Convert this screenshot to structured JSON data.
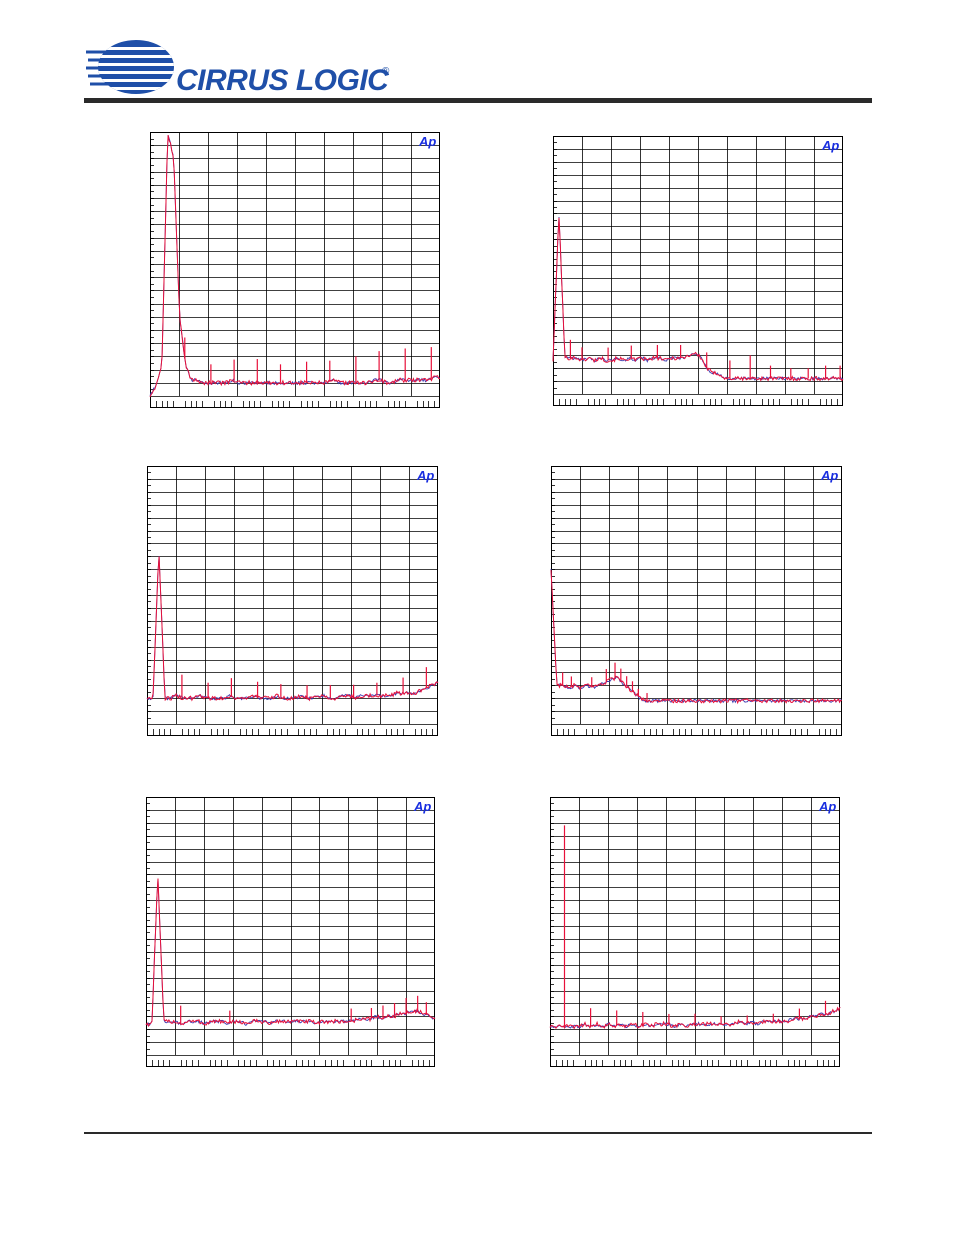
{
  "brand": {
    "name": "CIRRUS LOGIC",
    "mark": "®",
    "logo_icon": "cirrus-logic-swoosh-icon"
  },
  "colors": {
    "trace_red": "#e8103a",
    "trace_blue": "#3a3ab0",
    "grid": "#000000",
    "ap_badge": "#1a2fe0",
    "rule": "#2a2a2a"
  },
  "ap_badge_text": "Ap",
  "chart_data": [
    {
      "type": "line",
      "title": "",
      "xlabel": "",
      "ylabel": "",
      "grid": true,
      "y_scale": "dB",
      "x_ticks": "unlabeled",
      "series": [
        {
          "values": [
            0.0,
            0.04,
            0.12,
            1.0,
            0.9,
            0.3,
            0.12,
            0.06,
            0.06,
            0.05,
            0.05,
            0.05,
            0.05,
            0.05,
            0.06,
            0.05,
            0.05,
            0.05,
            0.05,
            0.05,
            0.05,
            0.05,
            0.05,
            0.05,
            0.05,
            0.05,
            0.05,
            0.05,
            0.05,
            0.05,
            0.05,
            0.06,
            0.05,
            0.05,
            0.05,
            0.05,
            0.05,
            0.05,
            0.06,
            0.06,
            0.05,
            0.05,
            0.06,
            0.06,
            0.06,
            0.06,
            0.06,
            0.06,
            0.07,
            0.07
          ]
        }
      ],
      "spikes": [
        [
          0.12,
          0.08
        ],
        [
          0.21,
          0.07
        ],
        [
          0.29,
          0.08
        ],
        [
          0.37,
          0.09
        ],
        [
          0.45,
          0.07
        ],
        [
          0.54,
          0.08
        ],
        [
          0.62,
          0.08
        ],
        [
          0.71,
          0.1
        ],
        [
          0.79,
          0.11
        ],
        [
          0.88,
          0.12
        ],
        [
          0.97,
          0.12
        ]
      ]
    },
    {
      "type": "line",
      "title": "",
      "xlabel": "",
      "ylabel": "",
      "grid": true,
      "y_scale": "dB",
      "x_ticks": "unlabeled",
      "series": [
        {
          "values": [
            0.13,
            0.7,
            0.14,
            0.14,
            0.14,
            0.13,
            0.14,
            0.13,
            0.14,
            0.13,
            0.13,
            0.14,
            0.13,
            0.14,
            0.13,
            0.14,
            0.13,
            0.14,
            0.14,
            0.13,
            0.14,
            0.14,
            0.14,
            0.15,
            0.16,
            0.14,
            0.1,
            0.08,
            0.08,
            0.06,
            0.06,
            0.06,
            0.06,
            0.06,
            0.06,
            0.06,
            0.06,
            0.06,
            0.06,
            0.06,
            0.06,
            0.06,
            0.06,
            0.06,
            0.06,
            0.06,
            0.06,
            0.06,
            0.06,
            0.06
          ]
        }
      ],
      "spikes": [
        [
          0.06,
          0.07
        ],
        [
          0.1,
          0.05
        ],
        [
          0.19,
          0.05
        ],
        [
          0.27,
          0.05
        ],
        [
          0.36,
          0.05
        ],
        [
          0.44,
          0.05
        ],
        [
          0.53,
          0.06
        ],
        [
          0.61,
          0.07
        ],
        [
          0.68,
          0.09
        ],
        [
          0.75,
          0.05
        ],
        [
          0.82,
          0.04
        ],
        [
          0.88,
          0.04
        ],
        [
          0.94,
          0.05
        ],
        [
          0.99,
          0.05
        ]
      ]
    },
    {
      "type": "line",
      "title": "",
      "xlabel": "",
      "ylabel": "",
      "grid": true,
      "y_scale": "dB",
      "x_ticks": "unlabeled",
      "series": [
        {
          "values": [
            0.1,
            0.1,
            0.68,
            0.1,
            0.1,
            0.11,
            0.1,
            0.1,
            0.1,
            0.11,
            0.1,
            0.1,
            0.1,
            0.1,
            0.11,
            0.1,
            0.1,
            0.1,
            0.11,
            0.1,
            0.1,
            0.1,
            0.11,
            0.1,
            0.1,
            0.1,
            0.11,
            0.1,
            0.1,
            0.11,
            0.11,
            0.1,
            0.1,
            0.11,
            0.11,
            0.1,
            0.11,
            0.11,
            0.11,
            0.11,
            0.11,
            0.11,
            0.12,
            0.12,
            0.12,
            0.12,
            0.13,
            0.14,
            0.15,
            0.16
          ]
        }
      ],
      "spikes": [
        [
          0.12,
          0.09
        ],
        [
          0.21,
          0.06
        ],
        [
          0.29,
          0.07
        ],
        [
          0.38,
          0.06
        ],
        [
          0.46,
          0.05
        ],
        [
          0.55,
          0.05
        ],
        [
          0.63,
          0.05
        ],
        [
          0.71,
          0.05
        ],
        [
          0.79,
          0.05
        ],
        [
          0.88,
          0.06
        ],
        [
          0.96,
          0.08
        ]
      ]
    },
    {
      "type": "line",
      "title": "",
      "xlabel": "",
      "ylabel": "",
      "grid": true,
      "y_scale": "dB",
      "x_ticks": "unlabeled",
      "series": [
        {
          "values": [
            0.6,
            0.15,
            0.15,
            0.14,
            0.15,
            0.14,
            0.15,
            0.14,
            0.15,
            0.16,
            0.17,
            0.18,
            0.16,
            0.14,
            0.12,
            0.1,
            0.09,
            0.09,
            0.09,
            0.09,
            0.09,
            0.09,
            0.09,
            0.09,
            0.09,
            0.09,
            0.09,
            0.09,
            0.09,
            0.09,
            0.09,
            0.09,
            0.09,
            0.09,
            0.09,
            0.09,
            0.09,
            0.09,
            0.09,
            0.09,
            0.09,
            0.09,
            0.09,
            0.09,
            0.09,
            0.09,
            0.09,
            0.09,
            0.09,
            0.09
          ]
        }
      ],
      "spikes": [
        [
          0.04,
          0.05
        ],
        [
          0.07,
          0.04
        ],
        [
          0.14,
          0.04
        ],
        [
          0.19,
          0.05
        ],
        [
          0.22,
          0.06
        ],
        [
          0.24,
          0.05
        ],
        [
          0.26,
          0.04
        ],
        [
          0.28,
          0.04
        ],
        [
          0.3,
          0.03
        ],
        [
          0.33,
          0.03
        ]
      ]
    },
    {
      "type": "line",
      "title": "",
      "xlabel": "",
      "ylabel": "",
      "grid": true,
      "y_scale": "dB",
      "x_ticks": "unlabeled",
      "series": [
        {
          "values": [
            0.12,
            0.12,
            0.7,
            0.13,
            0.13,
            0.13,
            0.12,
            0.13,
            0.13,
            0.13,
            0.12,
            0.13,
            0.13,
            0.13,
            0.12,
            0.13,
            0.13,
            0.12,
            0.13,
            0.13,
            0.13,
            0.12,
            0.13,
            0.13,
            0.13,
            0.13,
            0.13,
            0.13,
            0.13,
            0.12,
            0.13,
            0.13,
            0.13,
            0.13,
            0.13,
            0.13,
            0.14,
            0.14,
            0.14,
            0.15,
            0.14,
            0.15,
            0.15,
            0.16,
            0.16,
            0.17,
            0.17,
            0.16,
            0.15,
            0.14
          ]
        }
      ],
      "spikes": [
        [
          0.12,
          0.07
        ],
        [
          0.29,
          0.05
        ],
        [
          0.71,
          0.05
        ],
        [
          0.78,
          0.04
        ],
        [
          0.82,
          0.05
        ],
        [
          0.86,
          0.05
        ],
        [
          0.9,
          0.06
        ],
        [
          0.94,
          0.06
        ],
        [
          0.97,
          0.05
        ]
      ]
    },
    {
      "type": "line",
      "title": "",
      "xlabel": "",
      "ylabel": "",
      "grid": true,
      "y_scale": "dB",
      "x_ticks": "unlabeled",
      "series": [
        {
          "values": [
            0.11,
            0.11,
            0.11,
            0.11,
            0.11,
            0.11,
            0.12,
            0.11,
            0.12,
            0.11,
            0.12,
            0.11,
            0.12,
            0.11,
            0.12,
            0.11,
            0.12,
            0.11,
            0.12,
            0.12,
            0.12,
            0.11,
            0.12,
            0.11,
            0.12,
            0.12,
            0.12,
            0.12,
            0.12,
            0.12,
            0.12,
            0.12,
            0.13,
            0.12,
            0.13,
            0.12,
            0.13,
            0.13,
            0.13,
            0.13,
            0.13,
            0.14,
            0.14,
            0.14,
            0.15,
            0.15,
            0.16,
            0.16,
            0.17,
            0.18
          ]
        }
      ],
      "spikes": [
        [
          0.05,
          0.78
        ],
        [
          0.14,
          0.07
        ],
        [
          0.23,
          0.06
        ],
        [
          0.32,
          0.05
        ],
        [
          0.41,
          0.04
        ],
        [
          0.5,
          0.04
        ],
        [
          0.59,
          0.03
        ],
        [
          0.68,
          0.03
        ],
        [
          0.77,
          0.03
        ],
        [
          0.86,
          0.04
        ],
        [
          0.95,
          0.05
        ]
      ]
    }
  ]
}
